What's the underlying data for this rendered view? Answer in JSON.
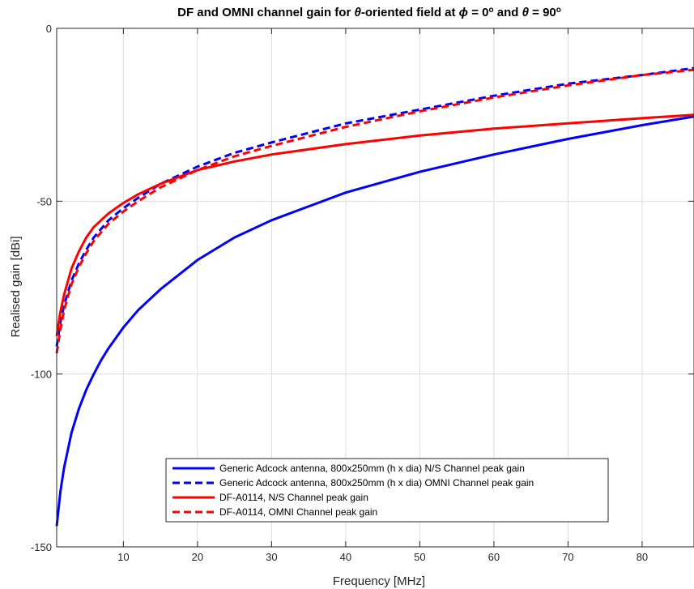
{
  "chart_data": {
    "type": "line",
    "title_parts": [
      {
        "t": "DF and OMNI channel gain for ",
        "style": "normal"
      },
      {
        "t": "θ",
        "style": "italic"
      },
      {
        "t": "-oriented field at ",
        "style": "normal"
      },
      {
        "t": "ϕ",
        "style": "italic"
      },
      {
        "t": " = 0",
        "style": "normal"
      },
      {
        "t": "o",
        "style": "sup"
      },
      {
        "t": " and ",
        "style": "normal"
      },
      {
        "t": "θ",
        "style": "italic"
      },
      {
        "t": " = 90",
        "style": "normal"
      },
      {
        "t": "o",
        "style": "sup"
      }
    ],
    "xlabel": "Frequency [MHz]",
    "ylabel": "Realised gain [dBi]",
    "xlim": [
      1,
      87
    ],
    "ylim": [
      -150,
      0
    ],
    "xticks": [
      10,
      20,
      30,
      40,
      50,
      60,
      70,
      80
    ],
    "yticks": [
      -150,
      -100,
      -50,
      0
    ],
    "grid": true,
    "legend_position": "bottom-center",
    "series": [
      {
        "name": "Generic Adcock antenna, 800x250mm (h x dia) N/S Channel peak gain",
        "color": "#0000ff",
        "dash": "solid",
        "x": [
          1,
          1.5,
          2,
          3,
          4,
          5,
          6,
          7,
          8,
          10,
          12,
          15,
          20,
          25,
          30,
          40,
          50,
          60,
          70,
          80,
          87
        ],
        "values": [
          -144,
          -134,
          -127,
          -117,
          -110,
          -104.5,
          -100,
          -96,
          -92.5,
          -86.5,
          -81.5,
          -75.5,
          -67,
          -60.5,
          -55.5,
          -47.5,
          -41.5,
          -36.5,
          -32,
          -28,
          -25.5
        ]
      },
      {
        "name": "Generic Adcock antenna, 800x250mm (h x dia) OMNI Channel peak gain",
        "color": "#0000ff",
        "dash": "dashed",
        "x": [
          1,
          1.5,
          2,
          3,
          4,
          5,
          6,
          7,
          8,
          10,
          12,
          15,
          20,
          25,
          30,
          40,
          50,
          60,
          70,
          80,
          87
        ],
        "values": [
          -92,
          -85,
          -80,
          -73,
          -68,
          -64,
          -60.5,
          -58,
          -55.5,
          -52,
          -49,
          -45,
          -40,
          -36,
          -33,
          -27.5,
          -23.5,
          -19.5,
          -16,
          -13.5,
          -11.5
        ]
      },
      {
        "name": "DF-A0114, N/S Channel peak gain",
        "color": "#ff0000",
        "dash": "solid",
        "x": [
          1,
          1.5,
          2,
          3,
          4,
          5,
          6,
          7,
          8,
          10,
          12,
          15,
          20,
          25,
          30,
          40,
          50,
          60,
          70,
          80,
          87
        ],
        "values": [
          -89,
          -82,
          -77,
          -69.5,
          -64.5,
          -60.5,
          -57.5,
          -55.5,
          -53.5,
          -50.5,
          -48,
          -45,
          -41,
          -38.5,
          -36.5,
          -33.5,
          -31,
          -29,
          -27.5,
          -26,
          -25
        ]
      },
      {
        "name": "DF-A0114, OMNI Channel peak gain",
        "color": "#ff0000",
        "dash": "dashed",
        "x": [
          1,
          1.5,
          2,
          3,
          4,
          5,
          6,
          7,
          8,
          10,
          12,
          15,
          20,
          25,
          30,
          40,
          50,
          60,
          70,
          80,
          87
        ],
        "values": [
          -94,
          -87,
          -81.5,
          -74,
          -69,
          -65,
          -61.5,
          -59,
          -56.5,
          -53,
          -50,
          -46,
          -41,
          -37,
          -34,
          -28.5,
          -24,
          -20,
          -16.5,
          -13.5,
          -12
        ]
      }
    ]
  }
}
